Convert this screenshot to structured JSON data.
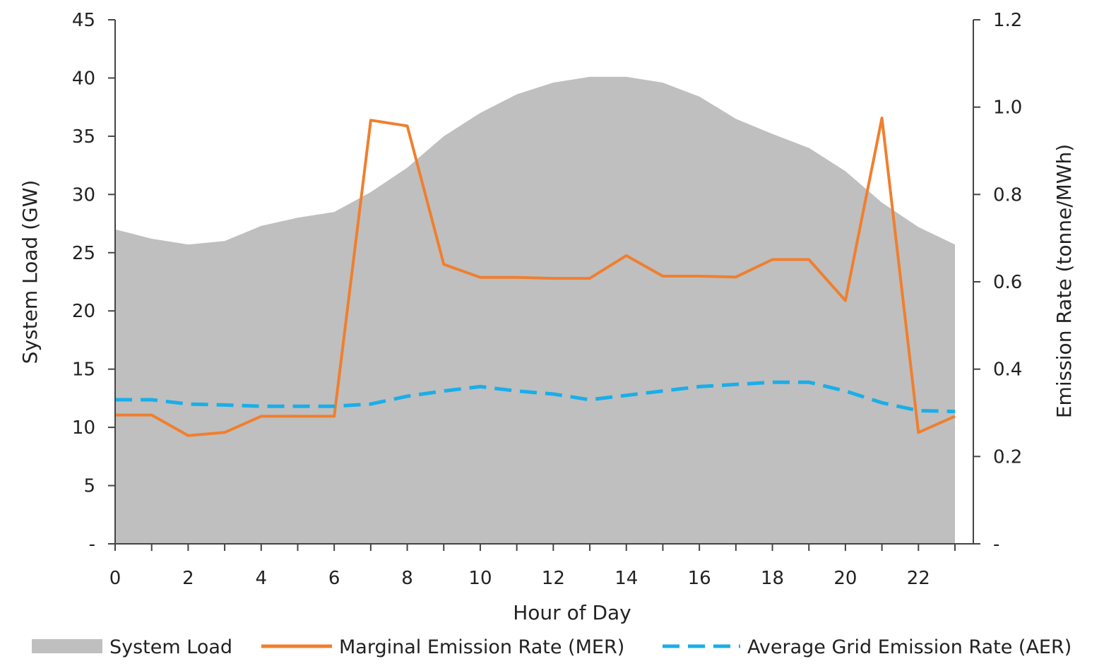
{
  "chart_data": {
    "type": "area+line",
    "title": "",
    "xlabel": "Hour of Day",
    "ylabel_left": "System Load (GW)",
    "ylabel_right": "Emission Rate (tonne/MWh)",
    "x_ticks": [
      "0",
      "2",
      "4",
      "6",
      "8",
      "10",
      "12",
      "14",
      "16",
      "18",
      "20",
      "22"
    ],
    "y_left_ticks": [
      "-",
      "5",
      "10",
      "15",
      "20",
      "25",
      "30",
      "35",
      "40",
      "45"
    ],
    "y_right_ticks": [
      "-",
      "0.2",
      "0.4",
      "0.6",
      "0.8",
      "1.0",
      "1.2"
    ],
    "xlim": [
      0,
      23
    ],
    "ylim_left": [
      0,
      45
    ],
    "ylim_right": [
      0,
      1.2
    ],
    "grid": false,
    "legend_position": "bottom",
    "x": [
      0,
      1,
      2,
      3,
      4,
      5,
      6,
      7,
      8,
      9,
      10,
      11,
      12,
      13,
      14,
      15,
      16,
      17,
      18,
      19,
      20,
      21,
      22,
      23
    ],
    "series": [
      {
        "name": "System Load",
        "kind": "area",
        "axis": "left",
        "color": "#bfbfbf",
        "values": [
          27.0,
          26.2,
          25.7,
          26.0,
          27.3,
          28.0,
          28.5,
          30.2,
          32.3,
          35.0,
          37.0,
          38.6,
          39.6,
          40.1,
          40.1,
          39.6,
          38.4,
          36.5,
          35.2,
          34.0,
          32.0,
          29.3,
          27.2,
          25.7
        ]
      },
      {
        "name": "Marginal Emission Rate (MER)",
        "kind": "line",
        "axis": "right",
        "color": "#f07f2e",
        "values": [
          0.295,
          0.295,
          0.248,
          0.255,
          0.292,
          0.292,
          0.292,
          0.97,
          0.957,
          0.64,
          0.61,
          0.61,
          0.608,
          0.608,
          0.66,
          0.613,
          0.613,
          0.611,
          0.651,
          0.651,
          0.557,
          0.975,
          0.255,
          0.292
        ]
      },
      {
        "name": "Average Grid Emission Rate (AER)",
        "kind": "dashed-line",
        "axis": "right",
        "color": "#1aaee8",
        "values": [
          0.33,
          0.33,
          0.32,
          0.318,
          0.315,
          0.315,
          0.315,
          0.32,
          0.338,
          0.35,
          0.36,
          0.35,
          0.343,
          0.33,
          0.34,
          0.35,
          0.36,
          0.365,
          0.37,
          0.37,
          0.35,
          0.323,
          0.305,
          0.303
        ]
      }
    ]
  }
}
